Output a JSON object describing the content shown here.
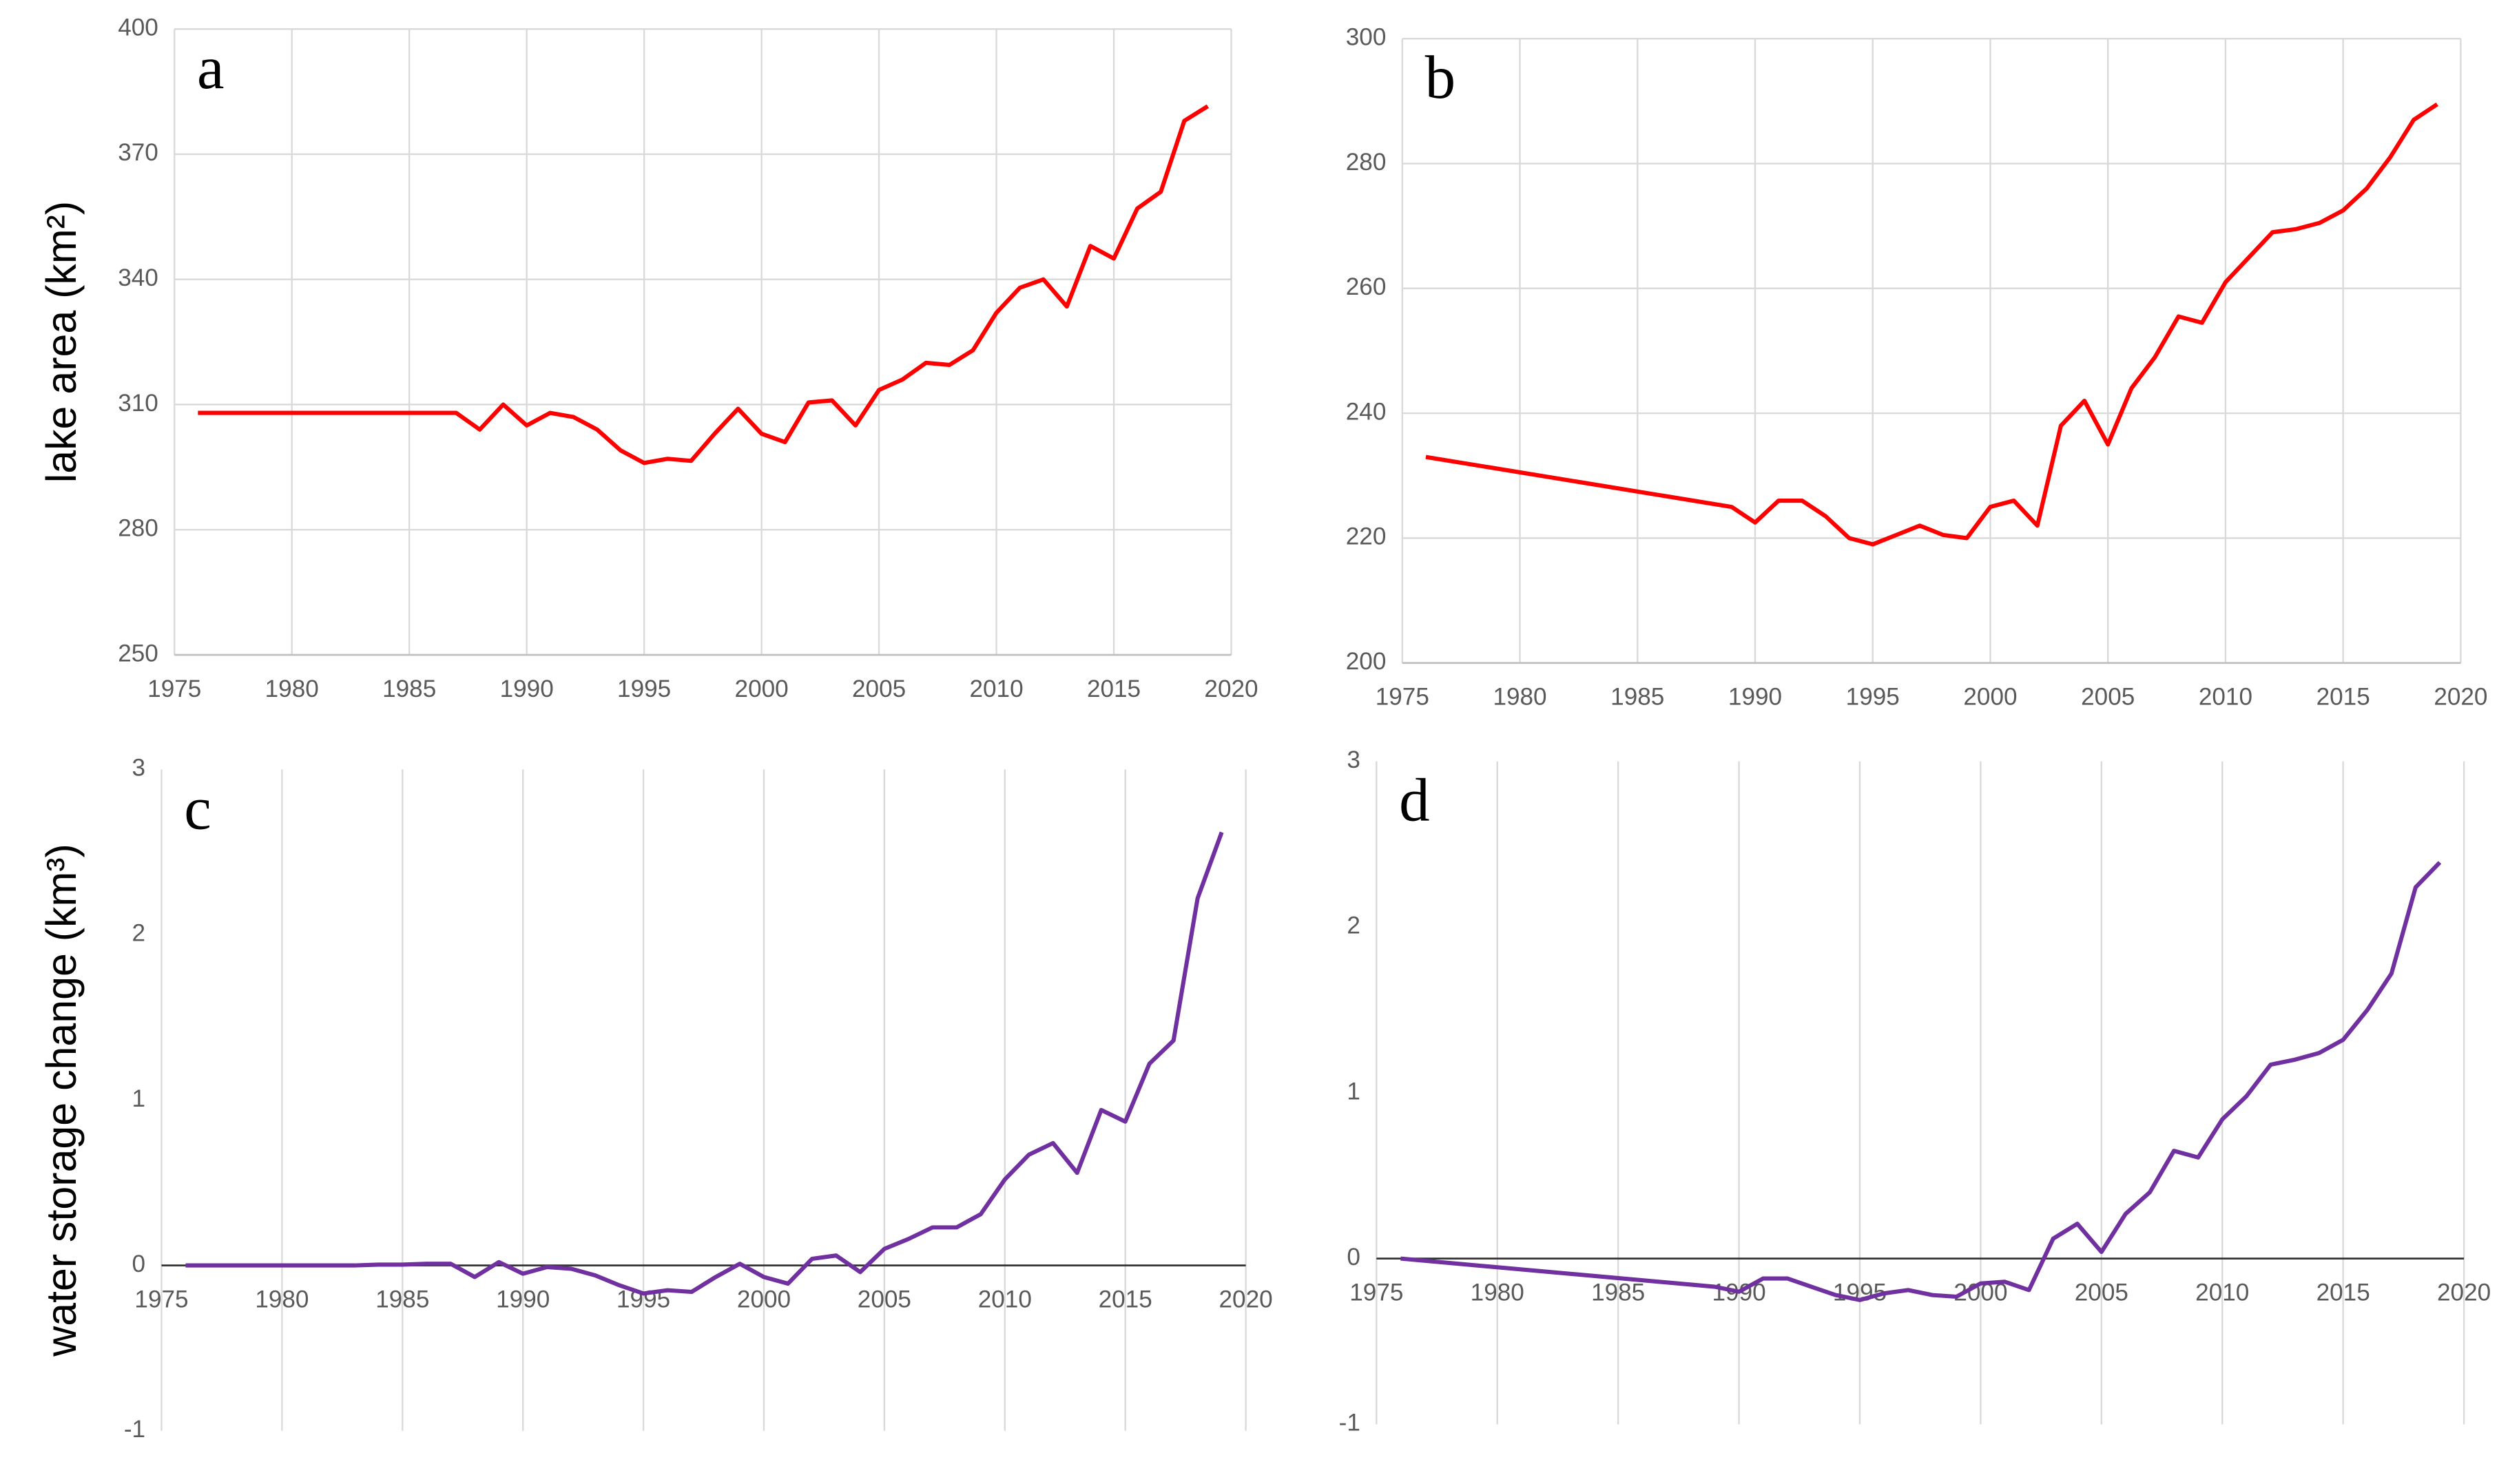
{
  "chart_data": [
    {
      "type": "line",
      "panel_label": "a",
      "ylabel": "lake area (km²)",
      "color": "#ff0000",
      "grid": "both",
      "x_axis_at_zero": false,
      "x": [
        1976,
        1987,
        1988,
        1989,
        1990,
        1991,
        1992,
        1993,
        1994,
        1995,
        1996,
        1997,
        1998,
        1999,
        2000,
        2001,
        2002,
        2003,
        2004,
        2005,
        2006,
        2007,
        2008,
        2009,
        2010,
        2011,
        2012,
        2013,
        2014,
        2015,
        2016,
        2017,
        2018,
        2019
      ],
      "values": [
        308,
        308,
        304,
        310,
        305,
        308,
        307,
        304,
        299,
        296,
        297,
        296.5,
        303,
        309,
        303,
        301,
        310.5,
        311,
        305,
        313.5,
        316,
        320,
        319.5,
        323,
        332,
        338,
        340,
        333.5,
        348,
        345,
        357,
        361,
        378,
        381.5
      ],
      "xlim": [
        1975,
        2020
      ],
      "xticks": [
        1975,
        1980,
        1985,
        1990,
        1995,
        2000,
        2005,
        2010,
        2015,
        2020
      ],
      "ylim": [
        250,
        400
      ],
      "yticks": [
        250,
        280,
        310,
        340,
        370,
        400
      ]
    },
    {
      "type": "line",
      "panel_label": "b",
      "color": "#ff0000",
      "grid": "both",
      "x_axis_at_zero": false,
      "x": [
        1976,
        1989,
        1990,
        1991,
        1992,
        1993,
        1994,
        1995,
        1996,
        1997,
        1998,
        1999,
        2000,
        2001,
        2002,
        2003,
        2004,
        2005,
        2006,
        2007,
        2008,
        2009,
        2010,
        2011,
        2012,
        2013,
        2014,
        2015,
        2016,
        2017,
        2018,
        2019
      ],
      "values": [
        233,
        225,
        222.5,
        226,
        226,
        223.5,
        220,
        219,
        220.5,
        222,
        220.5,
        220,
        225,
        226,
        222,
        238,
        242,
        235,
        244,
        249,
        255.5,
        254.5,
        261,
        265,
        269,
        269.5,
        270.5,
        272.5,
        276,
        281,
        287,
        289.5
      ],
      "xlim": [
        1975,
        2020
      ],
      "xticks": [
        1975,
        1980,
        1985,
        1990,
        1995,
        2000,
        2005,
        2010,
        2015,
        2020
      ],
      "ylim": [
        200,
        300
      ],
      "yticks": [
        200,
        220,
        240,
        260,
        280,
        300
      ]
    },
    {
      "type": "line",
      "panel_label": "c",
      "ylabel": "water storage change (km³)",
      "color": "#7030a0",
      "grid": "x",
      "x_axis_at_zero": true,
      "x": [
        1976,
        1977,
        1978,
        1979,
        1980,
        1981,
        1982,
        1983,
        1984,
        1985,
        1986,
        1987,
        1988,
        1989,
        1990,
        1991,
        1992,
        1993,
        1994,
        1995,
        1996,
        1997,
        1998,
        1999,
        2000,
        2001,
        2002,
        2003,
        2004,
        2005,
        2006,
        2007,
        2008,
        2009,
        2010,
        2011,
        2012,
        2013,
        2014,
        2015,
        2016,
        2017,
        2018,
        2019
      ],
      "values": [
        0,
        0,
        0,
        0,
        0,
        0,
        0,
        0,
        0.005,
        0.005,
        0.01,
        0.01,
        -0.07,
        0.02,
        -0.05,
        -0.01,
        -0.02,
        -0.06,
        -0.12,
        -0.17,
        -0.15,
        -0.16,
        -0.07,
        0.01,
        -0.07,
        -0.11,
        0.04,
        0.06,
        -0.04,
        0.1,
        0.16,
        0.23,
        0.23,
        0.31,
        0.52,
        0.67,
        0.74,
        0.56,
        0.94,
        0.87,
        1.22,
        1.36,
        2.22,
        2.62
      ],
      "xlim": [
        1975,
        2020
      ],
      "xticks": [
        1975,
        1980,
        1985,
        1990,
        1995,
        2000,
        2005,
        2010,
        2015,
        2020
      ],
      "ylim": [
        -1,
        3
      ],
      "yticks": [
        -1,
        0,
        1,
        2,
        3
      ]
    },
    {
      "type": "line",
      "panel_label": "d",
      "color": "#7030a0",
      "grid": "x",
      "x_axis_at_zero": true,
      "x": [
        1976,
        1989,
        1990,
        1991,
        1992,
        1993,
        1994,
        1995,
        1996,
        1997,
        1998,
        1999,
        2000,
        2001,
        2002,
        2003,
        2004,
        2005,
        2006,
        2007,
        2008,
        2009,
        2010,
        2011,
        2012,
        2013,
        2014,
        2015,
        2016,
        2017,
        2018,
        2019
      ],
      "values": [
        0,
        -0.17,
        -0.2,
        -0.12,
        -0.12,
        -0.17,
        -0.22,
        -0.25,
        -0.21,
        -0.19,
        -0.22,
        -0.23,
        -0.15,
        -0.14,
        -0.19,
        0.12,
        0.21,
        0.04,
        0.27,
        0.4,
        0.65,
        0.61,
        0.84,
        0.98,
        1.17,
        1.2,
        1.24,
        1.32,
        1.5,
        1.72,
        2.24,
        2.39
      ],
      "xlim": [
        1975,
        2020
      ],
      "xticks": [
        1975,
        1980,
        1985,
        1990,
        1995,
        2000,
        2005,
        2010,
        2015,
        2020
      ],
      "ylim": [
        -1,
        3
      ],
      "yticks": [
        -1,
        0,
        1,
        2,
        3
      ]
    }
  ]
}
